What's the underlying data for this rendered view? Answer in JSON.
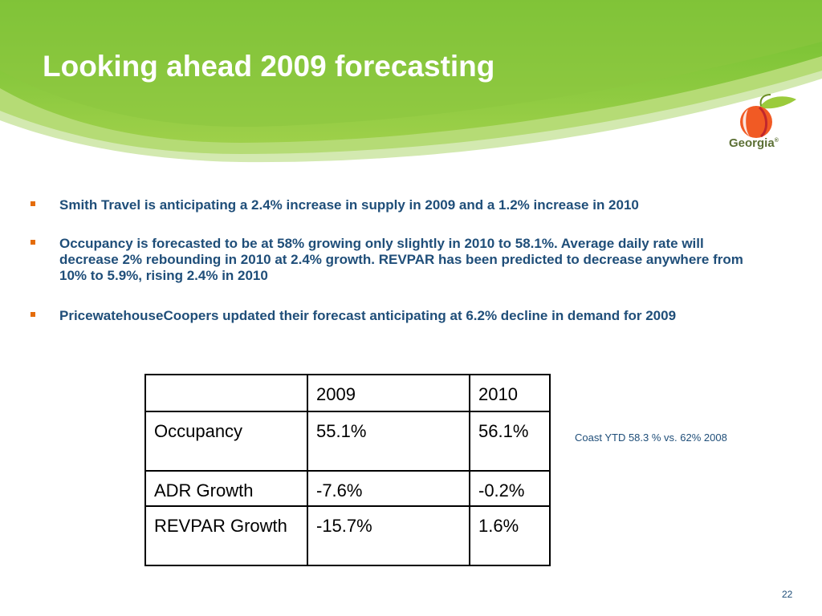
{
  "slide": {
    "title": "Looking ahead 2009 forecasting",
    "logo_text": "Georgia",
    "logo_mark": "®",
    "page_number": "22",
    "colors": {
      "title_band": "#8dc63f",
      "title_text": "#ffffff",
      "body_text": "#1f4e79",
      "bullet_marker": "#e46c0a"
    }
  },
  "bullets": [
    "Smith Travel is anticipating a 2.4% increase in supply in 2009 and a 1.2% increase in 2010",
    "Occupancy is forecasted to be at 58% growing only slightly in 2010 to 58.1%. Average daily rate will decrease 2% rebounding in 2010 at 2.4% growth. REVPAR has been predicted to decrease anywhere from 10% to 5.9%, rising 2.4% in 2010",
    "PricewatehouseCoopers updated their forecast anticipating at 6.2% decline in demand for 2009"
  ],
  "table": {
    "header": [
      "",
      "2009",
      "2010"
    ],
    "rows": [
      [
        "Occupancy",
        "55.1%",
        "56.1%"
      ],
      [
        "ADR Growth",
        "-7.6%",
        "-0.2%"
      ],
      [
        "REVPAR Growth",
        "-15.7%",
        "1.6%"
      ]
    ]
  },
  "side_note": "Coast YTD 58.3 % vs. 62% 2008"
}
